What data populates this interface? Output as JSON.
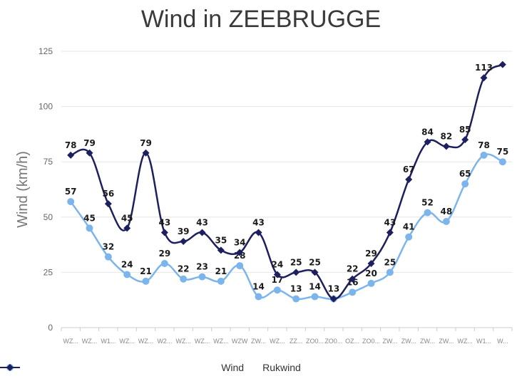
{
  "title": "Wind in ZEEBRUGGE",
  "chart_data": {
    "type": "line",
    "title": "Wind in ZEEBRUGGE",
    "ylabel": "Wind (km/h)",
    "xlabel": "",
    "ylim": [
      0,
      125
    ],
    "yticks": [
      0,
      25,
      50,
      75,
      100,
      125
    ],
    "grid": true,
    "legend_position": "bottom",
    "categories": [
      "WZ...",
      "WZ...",
      "W1...",
      "WZ...",
      "WZ...",
      "W2...",
      "WZ...",
      "WZ...",
      "WZ...",
      "WZW",
      "ZW...",
      "WZ...",
      "ZZ...",
      "ZO0...",
      "ZO0...",
      "OZ...",
      "ZO0...",
      "ZW...",
      "ZW...",
      "ZW...",
      "ZW...",
      "WZ...",
      "W1...",
      "W..."
    ],
    "series": [
      {
        "name": "Wind",
        "color": "#7cb5ec",
        "marker": "circle",
        "values": [
          57,
          45,
          32,
          24,
          21,
          29,
          22,
          23,
          21,
          28,
          14,
          17,
          13,
          14,
          13,
          16,
          20,
          25,
          41,
          52,
          48,
          65,
          78,
          75
        ]
      },
      {
        "name": "Rukwind",
        "color": "#1d1f5e",
        "marker": "diamond",
        "values": [
          78,
          79,
          56,
          45,
          79,
          43,
          39,
          43,
          35,
          34,
          43,
          24,
          25,
          25,
          13,
          22,
          29,
          43,
          67,
          84,
          82,
          85,
          113,
          119
        ],
        "labels": [
          "78",
          "79",
          "56",
          "45",
          "79",
          "43",
          "39",
          "43",
          "35",
          "34",
          "43",
          "24",
          "25",
          "25",
          "",
          "22",
          "29",
          "43",
          "67",
          "84",
          "82",
          "85",
          "113",
          ""
        ]
      }
    ]
  }
}
